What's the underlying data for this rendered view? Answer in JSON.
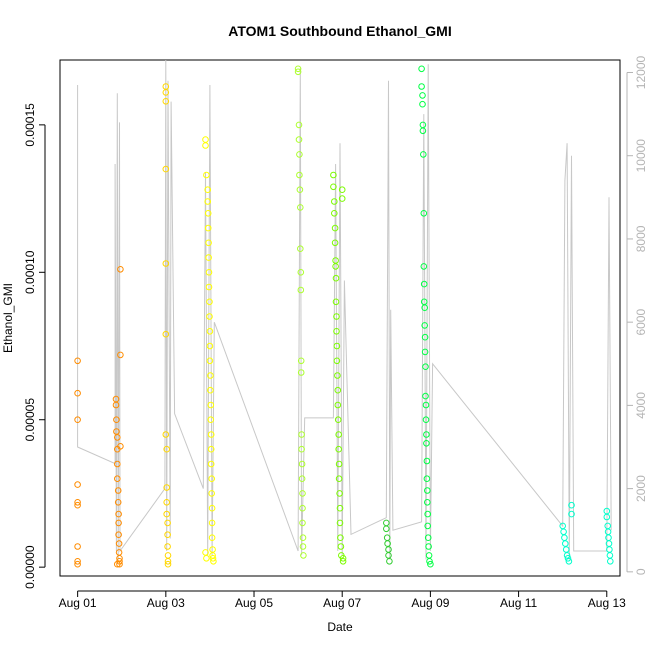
{
  "chart_data": {
    "type": "scatter",
    "title": "ATOM1 Southbound Ethanol_GMI",
    "xlabel": "Date",
    "ylabel": "Ethanol_GMI",
    "x_unit": "days in August (day-of-month)",
    "xlim": [
      0.6,
      13.3
    ],
    "ylim": [
      -3e-06,
      0.000172
    ],
    "y_ticks": [
      0,
      5e-05,
      0.0001,
      0.00015
    ],
    "y_tick_labels": [
      "0.00000",
      "0.00005",
      "0.00010",
      "0.00015"
    ],
    "x_ticks": [
      1,
      3,
      5,
      7,
      9,
      11,
      13
    ],
    "x_tick_labels": [
      "Aug 01",
      "Aug 03",
      "Aug 05",
      "Aug 07",
      "Aug 09",
      "Aug 11",
      "Aug 13"
    ],
    "y2_ticks": [
      0,
      2000,
      4000,
      6000,
      8000,
      10000,
      12000
    ],
    "y2_tick_labels": [
      "0",
      "2000",
      "4000",
      "6000",
      "8000",
      "10000",
      "12000"
    ],
    "y2lim": [
      -100,
      12300
    ],
    "secondary_series": {
      "color": "#c8c8c8",
      "description": "unlabeled grey line on right axis",
      "points": [
        [
          1.0,
          11700
        ],
        [
          1.0,
          3000
        ],
        [
          1.85,
          2600
        ],
        [
          1.85,
          9800
        ],
        [
          1.88,
          500
        ],
        [
          1.9,
          11500
        ],
        [
          1.92,
          300
        ],
        [
          1.95,
          10800
        ],
        [
          1.96,
          500
        ],
        [
          2.98,
          2000
        ],
        [
          3.0,
          12300
        ],
        [
          3.02,
          500
        ],
        [
          3.05,
          11800
        ],
        [
          3.1,
          800
        ],
        [
          3.12,
          11300
        ],
        [
          3.2,
          3800
        ],
        [
          3.85,
          2000
        ],
        [
          3.9,
          9600
        ],
        [
          3.95,
          400
        ],
        [
          4.0,
          11700
        ],
        [
          4.05,
          400
        ],
        [
          4.1,
          6000
        ],
        [
          6.0,
          500
        ],
        [
          6.05,
          12100
        ],
        [
          6.08,
          400
        ],
        [
          6.15,
          3700
        ],
        [
          6.8,
          3700
        ],
        [
          6.85,
          9800
        ],
        [
          6.9,
          500
        ],
        [
          6.95,
          10300
        ],
        [
          7.0,
          400
        ],
        [
          7.05,
          7000
        ],
        [
          7.2,
          900
        ],
        [
          8.0,
          1300
        ],
        [
          8.05,
          11800
        ],
        [
          8.08,
          300
        ],
        [
          8.1,
          6300
        ],
        [
          8.15,
          1000
        ],
        [
          8.8,
          1200
        ],
        [
          8.85,
          11000
        ],
        [
          8.9,
          300
        ],
        [
          8.95,
          12200
        ],
        [
          9.0,
          500
        ],
        [
          9.05,
          5000
        ],
        [
          12.0,
          1100
        ],
        [
          12.05,
          9400
        ],
        [
          12.1,
          10300
        ],
        [
          12.15,
          300
        ],
        [
          12.2,
          10000
        ],
        [
          12.25,
          500
        ],
        [
          13.0,
          500
        ],
        [
          13.05,
          9000
        ],
        [
          13.1,
          1000
        ]
      ]
    },
    "series": [
      {
        "color": "#ff8c00",
        "points": [
          [
            1.0,
            7e-05
          ],
          [
            1.0,
            5.9e-05
          ],
          [
            1.0,
            5e-05
          ],
          [
            1.0,
            2.8e-05
          ],
          [
            1.0,
            2.2e-05
          ],
          [
            1.0,
            2.1e-05
          ],
          [
            1.0,
            7e-06
          ],
          [
            1.0,
            2e-06
          ],
          [
            1.0,
            1e-06
          ],
          [
            1.87,
            5.7e-05
          ],
          [
            1.87,
            5.5e-05
          ],
          [
            1.88,
            5e-05
          ],
          [
            1.88,
            4.6e-05
          ],
          [
            1.9,
            4.4e-05
          ],
          [
            1.9,
            4e-05
          ],
          [
            1.9,
            3.5e-05
          ],
          [
            1.9,
            3e-05
          ],
          [
            1.92,
            2.6e-05
          ],
          [
            1.92,
            2.2e-05
          ],
          [
            1.93,
            1.8e-05
          ],
          [
            1.93,
            1.5e-05
          ],
          [
            1.93,
            1.1e-05
          ],
          [
            1.94,
            8e-06
          ],
          [
            1.94,
            5e-06
          ],
          [
            1.95,
            3e-06
          ],
          [
            1.95,
            2e-06
          ],
          [
            1.95,
            1e-06
          ],
          [
            1.97,
            0.000101
          ],
          [
            1.97,
            7.2e-05
          ],
          [
            1.97,
            4.1e-05
          ],
          [
            1.9,
            1e-06
          ]
        ]
      },
      {
        "color": "#ffd700",
        "points": [
          [
            3.0,
            0.000163
          ],
          [
            3.0,
            0.000161
          ],
          [
            3.0,
            0.000158
          ],
          [
            3.0,
            0.000135
          ],
          [
            3.0,
            0.000103
          ],
          [
            3.0,
            7.9e-05
          ],
          [
            3.0,
            4.5e-05
          ],
          [
            3.02,
            4e-05
          ],
          [
            3.02,
            2.7e-05
          ],
          [
            3.02,
            2.2e-05
          ],
          [
            3.02,
            1.8e-05
          ],
          [
            3.04,
            1.5e-05
          ],
          [
            3.04,
            1.1e-05
          ],
          [
            3.04,
            7e-06
          ],
          [
            3.05,
            4e-06
          ],
          [
            3.05,
            2e-06
          ],
          [
            3.05,
            1e-06
          ]
        ]
      },
      {
        "color": "#ffff00",
        "points": [
          [
            3.9,
            0.000145
          ],
          [
            3.9,
            0.000143
          ],
          [
            3.92,
            0.000133
          ],
          [
            3.95,
            0.000128
          ],
          [
            3.95,
            0.000124
          ],
          [
            3.96,
            0.00012
          ],
          [
            3.96,
            0.000115
          ],
          [
            3.97,
            0.00011
          ],
          [
            3.97,
            0.000105
          ],
          [
            3.98,
            0.0001
          ],
          [
            3.98,
            9.5e-05
          ],
          [
            3.99,
            9e-05
          ],
          [
            3.99,
            8.5e-05
          ],
          [
            4.0,
            8e-05
          ],
          [
            4.0,
            7.5e-05
          ],
          [
            4.0,
            7e-05
          ],
          [
            4.01,
            6.5e-05
          ],
          [
            4.01,
            6e-05
          ],
          [
            4.02,
            5.5e-05
          ],
          [
            4.02,
            5e-05
          ],
          [
            4.03,
            4.5e-05
          ],
          [
            4.03,
            4e-05
          ],
          [
            4.03,
            3.5e-05
          ],
          [
            4.04,
            3e-05
          ],
          [
            4.04,
            2.5e-05
          ],
          [
            4.05,
            2e-05
          ],
          [
            4.05,
            1.5e-05
          ],
          [
            4.05,
            1e-05
          ],
          [
            4.06,
            6e-06
          ],
          [
            4.06,
            4e-06
          ],
          [
            4.07,
            3e-06
          ],
          [
            3.9,
            5e-06
          ],
          [
            3.92,
            3e-06
          ],
          [
            4.08,
            2e-06
          ]
        ]
      },
      {
        "color": "#adff2f",
        "points": [
          [
            6.0,
            0.000169
          ],
          [
            6.0,
            0.000168
          ],
          [
            6.02,
            0.00015
          ],
          [
            6.02,
            0.000145
          ],
          [
            6.03,
            0.00014
          ],
          [
            6.03,
            0.000133
          ],
          [
            6.04,
            0.000128
          ],
          [
            6.05,
            0.000122
          ],
          [
            6.05,
            0.000108
          ],
          [
            6.06,
            0.0001
          ],
          [
            6.06,
            9.4e-05
          ],
          [
            6.07,
            7e-05
          ],
          [
            6.07,
            6.6e-05
          ],
          [
            6.08,
            4.5e-05
          ],
          [
            6.08,
            4e-05
          ],
          [
            6.09,
            3.5e-05
          ],
          [
            6.09,
            3e-05
          ],
          [
            6.1,
            2.5e-05
          ],
          [
            6.1,
            2e-05
          ],
          [
            6.1,
            1.5e-05
          ],
          [
            6.11,
            1e-05
          ],
          [
            6.11,
            7e-06
          ],
          [
            6.12,
            4e-06
          ]
        ]
      },
      {
        "color": "#7cfc00",
        "points": [
          [
            6.8,
            0.000133
          ],
          [
            6.8,
            0.000129
          ],
          [
            6.82,
            0.000124
          ],
          [
            6.82,
            0.00012
          ],
          [
            6.84,
            0.000115
          ],
          [
            6.84,
            0.00011
          ],
          [
            6.85,
            0.000104
          ],
          [
            6.85,
            0.000102
          ],
          [
            6.86,
            9.8e-05
          ],
          [
            6.86,
            9e-05
          ],
          [
            6.87,
            8.5e-05
          ],
          [
            6.87,
            8e-05
          ],
          [
            6.88,
            7.5e-05
          ],
          [
            6.88,
            7e-05
          ],
          [
            6.89,
            6.5e-05
          ],
          [
            6.9,
            6e-05
          ],
          [
            6.9,
            5.5e-05
          ],
          [
            6.91,
            5e-05
          ],
          [
            6.92,
            4.5e-05
          ],
          [
            6.92,
            4e-05
          ],
          [
            6.93,
            3.5e-05
          ],
          [
            6.93,
            3e-05
          ],
          [
            6.94,
            2.5e-05
          ],
          [
            6.95,
            2e-05
          ],
          [
            6.95,
            1.5e-05
          ],
          [
            6.96,
            1e-05
          ],
          [
            6.97,
            7e-06
          ],
          [
            6.98,
            4e-06
          ],
          [
            7.0,
            0.000128
          ],
          [
            7.0,
            0.000125
          ],
          [
            7.02,
            3e-06
          ],
          [
            7.02,
            2e-06
          ]
        ]
      },
      {
        "color": "#32cd32",
        "points": [
          [
            8.0,
            1.5e-05
          ],
          [
            8.0,
            1.3e-05
          ],
          [
            8.02,
            1e-05
          ],
          [
            8.03,
            8e-06
          ],
          [
            8.05,
            6e-06
          ],
          [
            8.05,
            4e-06
          ],
          [
            8.07,
            2e-06
          ]
        ]
      },
      {
        "color": "#00ff44",
        "points": [
          [
            8.8,
            0.000169
          ],
          [
            8.8,
            0.000163
          ],
          [
            8.82,
            0.00016
          ],
          [
            8.82,
            0.000157
          ],
          [
            8.83,
            0.00015
          ],
          [
            8.83,
            0.000148
          ],
          [
            8.84,
            0.00014
          ],
          [
            8.85,
            0.00012
          ],
          [
            8.85,
            0.000102
          ],
          [
            8.86,
            9.6e-05
          ],
          [
            8.86,
            9e-05
          ],
          [
            8.87,
            8.8e-05
          ],
          [
            8.87,
            8.2e-05
          ],
          [
            8.88,
            7.8e-05
          ],
          [
            8.88,
            7.3e-05
          ],
          [
            8.89,
            6.8e-05
          ],
          [
            8.89,
            5.8e-05
          ],
          [
            8.9,
            5.5e-05
          ],
          [
            8.9,
            5e-05
          ],
          [
            8.91,
            4.5e-05
          ],
          [
            8.91,
            4.2e-05
          ],
          [
            8.92,
            3.6e-05
          ],
          [
            8.92,
            3e-05
          ],
          [
            8.93,
            2.6e-05
          ],
          [
            8.93,
            2.2e-05
          ],
          [
            8.94,
            1.8e-05
          ],
          [
            8.94,
            1.4e-05
          ],
          [
            8.95,
            1e-05
          ],
          [
            8.96,
            7e-06
          ],
          [
            8.97,
            4e-06
          ],
          [
            8.98,
            2e-06
          ],
          [
            9.0,
            1e-06
          ]
        ]
      },
      {
        "color": "#00ffcc",
        "points": [
          [
            12.0,
            1.4e-05
          ],
          [
            12.02,
            1.2e-05
          ],
          [
            12.04,
            1e-05
          ],
          [
            12.06,
            8e-06
          ],
          [
            12.08,
            6e-06
          ],
          [
            12.1,
            4e-06
          ],
          [
            12.12,
            3e-06
          ],
          [
            12.14,
            2e-06
          ],
          [
            12.2,
            2.1e-05
          ],
          [
            12.2,
            1.8e-05
          ],
          [
            13.0,
            1.9e-05
          ],
          [
            13.0,
            1.7e-05
          ],
          [
            13.02,
            1.4e-05
          ],
          [
            13.03,
            1.2e-05
          ],
          [
            13.04,
            1e-05
          ],
          [
            13.05,
            8e-06
          ],
          [
            13.06,
            6e-06
          ],
          [
            13.07,
            4e-06
          ],
          [
            13.08,
            2e-06
          ]
        ]
      }
    ],
    "grid": false,
    "legend": "none"
  }
}
